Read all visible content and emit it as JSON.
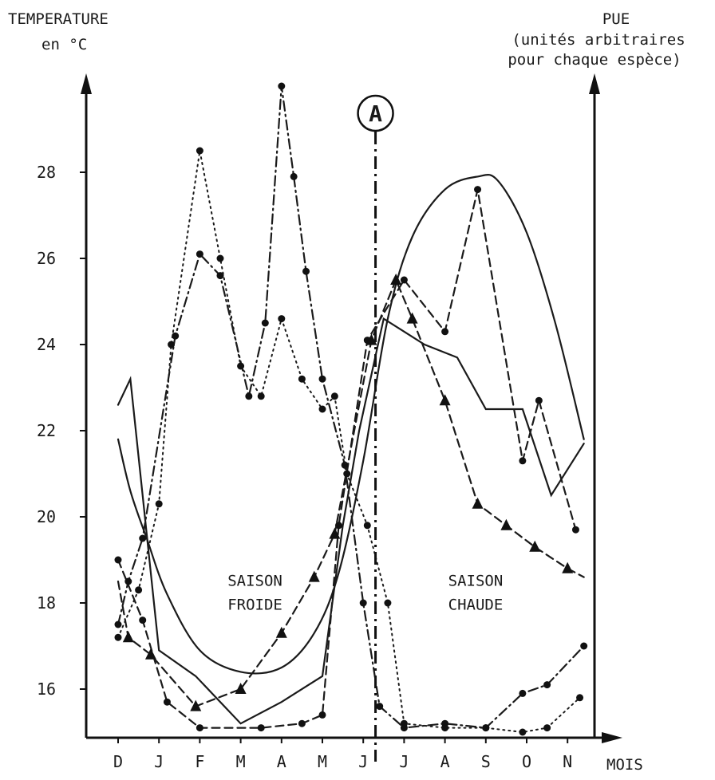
{
  "chart_data": {
    "type": "line",
    "title": "",
    "left_axis_label": [
      "TEMPERATURE",
      "en °C"
    ],
    "right_axis_label": [
      "PUE",
      "(unités arbitraires",
      "pour chaque espèce)"
    ],
    "xlabel": "MOIS",
    "ylim": [
      15,
      29.5
    ],
    "yticks": [
      16,
      18,
      20,
      22,
      24,
      26,
      28
    ],
    "categories": [
      "D",
      "J",
      "F",
      "M",
      "A",
      "M",
      "J",
      "J",
      "A",
      "S",
      "O",
      "N"
    ],
    "marker_A": {
      "label": "A",
      "x": 6.3
    },
    "annotations": [
      {
        "lines": [
          "SAISON",
          "FROIDE"
        ],
        "x": 3.35,
        "y": 18.4
      },
      {
        "lines": [
          "SAISON",
          "CHAUDE"
        ],
        "x": 8.75,
        "y": 18.4
      }
    ],
    "series": [
      {
        "style": "smooth-solid",
        "x": [
          0,
          0.3,
          0.7,
          1.2,
          2,
          3,
          4,
          4.8,
          5.4,
          6,
          6.6,
          7.2,
          8,
          8.8,
          9.3,
          10,
          10.7,
          11.4
        ],
        "y": [
          21.8,
          20.6,
          19.5,
          18.2,
          16.9,
          16.4,
          16.5,
          17.3,
          18.7,
          21.3,
          24.6,
          26.5,
          27.6,
          27.9,
          27.8,
          26.6,
          24.5,
          21.8
        ]
      },
      {
        "style": "solid",
        "x": [
          0,
          0.3,
          1,
          1.9,
          3,
          4,
          5,
          5.5,
          5.9,
          6.5,
          7.5,
          8.3,
          9,
          9.9,
          10.6,
          11.4
        ],
        "y": [
          22.6,
          23.2,
          16.9,
          16.3,
          15.2,
          15.7,
          16.3,
          19.8,
          22,
          24.6,
          24,
          23.7,
          22.5,
          22.5,
          20.5,
          21.7
        ]
      },
      {
        "style": "dashed",
        "marker": "dot",
        "x": [
          0,
          0.6,
          1.2,
          2,
          3.5,
          4.5,
          5,
          5.4,
          6.1,
          7,
          8,
          8.8,
          9.9,
          10.3,
          11.2
        ],
        "y": [
          19,
          17.6,
          15.7,
          15.1,
          15.1,
          15.2,
          15.4,
          19.8,
          24.1,
          25.5,
          24.3,
          27.6,
          21.3,
          22.7,
          19.7
        ]
      },
      {
        "style": "dashed",
        "marker": "triangle",
        "x": [
          0,
          0.25,
          0.8,
          1.9,
          3,
          4,
          4.8,
          5.3,
          6.2,
          6.8,
          7.2,
          8,
          8.8,
          9.5,
          10.2,
          11,
          11.4
        ],
        "y": [
          18.5,
          17.2,
          16.8,
          15.6,
          16,
          17.3,
          18.6,
          19.6,
          24.1,
          25.5,
          24.6,
          22.7,
          20.3,
          19.8,
          19.3,
          18.8,
          18.6
        ]
      },
      {
        "style": "dash-dot",
        "marker": "dot",
        "x": [
          0,
          0.25,
          0.6,
          1.4,
          2,
          2.5,
          3.2,
          3.6,
          4,
          4.3,
          4.6,
          5,
          5.55,
          6,
          6.4,
          7,
          8,
          9,
          9.9,
          10.5,
          11.4
        ],
        "y": [
          17.5,
          18.5,
          19.5,
          24.2,
          26.1,
          25.6,
          22.8,
          24.5,
          30,
          27.9,
          25.7,
          23.2,
          21.2,
          18,
          15.6,
          15.1,
          15.2,
          15.1,
          15.9,
          16.1,
          17
        ]
      },
      {
        "style": "dotted",
        "marker": "dot",
        "x": [
          0,
          0.5,
          1,
          1.3,
          2,
          2.5,
          3,
          3.5,
          4,
          4.5,
          5,
          5.3,
          5.6,
          6.1,
          6.6,
          7,
          8,
          9,
          9.9,
          10.5,
          11.3
        ],
        "y": [
          17.2,
          18.3,
          20.3,
          24,
          28.5,
          26,
          23.5,
          22.8,
          24.6,
          23.2,
          22.5,
          22.8,
          21,
          19.8,
          18,
          15.2,
          15.1,
          15.1,
          15,
          15.1,
          15.8
        ]
      }
    ]
  }
}
